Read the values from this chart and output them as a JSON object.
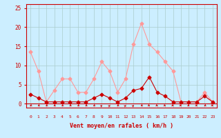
{
  "x": [
    0,
    1,
    2,
    3,
    4,
    5,
    6,
    7,
    8,
    9,
    10,
    11,
    12,
    13,
    14,
    15,
    16,
    17,
    18,
    19,
    20,
    21,
    22,
    23
  ],
  "avg_wind": [
    2.5,
    1.5,
    0.5,
    0.5,
    0.5,
    0.5,
    0.5,
    0.5,
    1.5,
    2.5,
    1.5,
    0.5,
    1.5,
    3.5,
    4.0,
    7.0,
    3.0,
    2.0,
    0.5,
    0.5,
    0.5,
    0.5,
    2.0,
    0.5
  ],
  "gust_wind": [
    13.5,
    8.5,
    0.5,
    3.5,
    6.5,
    6.5,
    3.0,
    3.0,
    6.5,
    11.0,
    8.5,
    3.0,
    6.5,
    15.5,
    21.0,
    15.5,
    13.5,
    11.0,
    8.5,
    0.5,
    0.5,
    0.5,
    3.0,
    0.5
  ],
  "avg_color": "#cc0000",
  "gust_color": "#ff9999",
  "bg_color": "#cceeff",
  "grid_color": "#aacccc",
  "xlabel": "Vent moyen/en rafales ( km/h )",
  "xlabel_color": "#cc0000",
  "ylabel_ticks": [
    0,
    5,
    10,
    15,
    20,
    25
  ],
  "xlim": [
    -0.5,
    23.5
  ],
  "ylim": [
    -1,
    26
  ],
  "tick_color": "#cc0000",
  "spine_color": "#cc0000",
  "arrow_angles": [
    225,
    225,
    225,
    225,
    225,
    225,
    225,
    225,
    225,
    45,
    45,
    225,
    45,
    45,
    225,
    135,
    135,
    135,
    135,
    135,
    135,
    135,
    225,
    135
  ]
}
